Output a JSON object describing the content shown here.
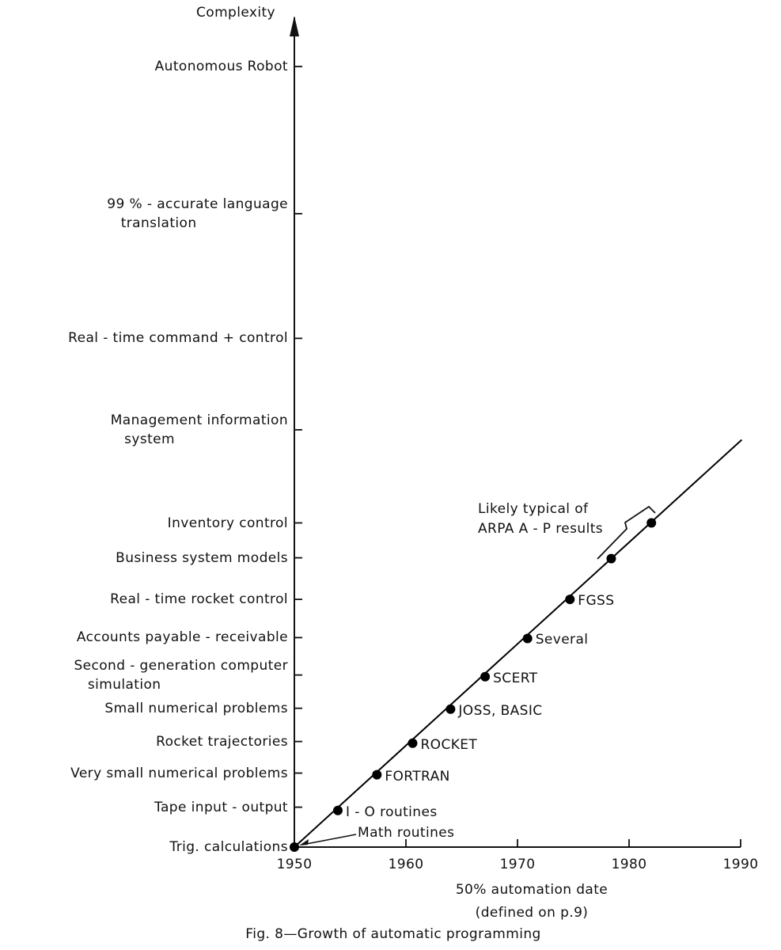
{
  "chart_data": {
    "type": "scatter",
    "caption": "Fig. 8—Growth of automatic programming",
    "y_axis_label": "Complexity",
    "x_axis_label": "50% automation date\n(defined on p.9)",
    "xlim": [
      1950,
      1990
    ],
    "xticks": [
      1950,
      1960,
      1970,
      1980,
      1990
    ],
    "ylim": [
      0,
      100
    ],
    "yticks": [
      {
        "value": 0,
        "label": "Trig. calculations"
      },
      {
        "value": 4.8,
        "label": "Tape input - output"
      },
      {
        "value": 8.9,
        "label": "Very small numerical problems"
      },
      {
        "value": 12.7,
        "label": "Rocket trajectories"
      },
      {
        "value": 16.7,
        "label": "Small numerical problems"
      },
      {
        "value": 20.7,
        "label": "Second - generation computer\n   simulation"
      },
      {
        "value": 25.2,
        "label": "Accounts payable - receivable"
      },
      {
        "value": 29.8,
        "label": "Real - time rocket control"
      },
      {
        "value": 34.8,
        "label": "Business system models"
      },
      {
        "value": 39,
        "label": "Inventory control"
      },
      {
        "value": 50.2,
        "label": "Management information\n   system"
      },
      {
        "value": 61.2,
        "label": "Real - time command + control"
      },
      {
        "value": 76.2,
        "label": "99 % - accurate language\n   translation"
      },
      {
        "value": 93.9,
        "label": "Autonomous Robot"
      }
    ],
    "x": [
      1950,
      1953.9,
      1957.4,
      1960.6,
      1964.0,
      1967.1,
      1970.9,
      1974.7,
      1978.4,
      1982.0
    ],
    "values": [
      0,
      4.4,
      8.7,
      12.5,
      16.6,
      20.5,
      25.1,
      29.8,
      34.7,
      39.0
    ],
    "point_labels": [
      "Math routines",
      "I - O routines",
      "FORTRAN",
      "ROCKET",
      "JOSS, BASIC",
      "SCERT",
      "Several",
      "FGSS",
      null,
      null
    ],
    "trend_line": {
      "x": [
        1950,
        1990.1
      ],
      "y": [
        0,
        49
      ]
    },
    "annotation": "Likely typical of\nARPA A - P results",
    "color": "#000000"
  }
}
